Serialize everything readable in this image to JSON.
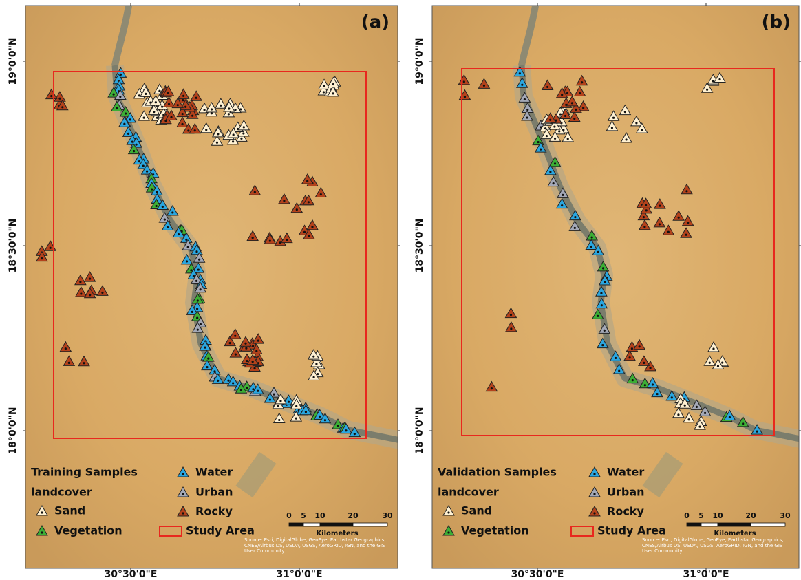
{
  "panels": [
    {
      "label": "(a)",
      "legend_title": "Training Samples"
    },
    {
      "label": "(b)",
      "legend_title": "Validation Samples"
    }
  ],
  "lat_labels": [
    "19°0'0\"N",
    "18°30'0\"N",
    "18°0'0\"N"
  ],
  "lon_labels": [
    "30°30'0\"E",
    "31°0'0\"E"
  ],
  "legend": {
    "subtitle": "landcover",
    "items": [
      "Sand",
      "Vegetation",
      "Water",
      "Urban",
      "Rocky",
      "Study Area"
    ]
  },
  "scale_bar": {
    "ticks": [
      "0",
      "5",
      "10",
      "20",
      "30"
    ],
    "unit": "Kilometers"
  },
  "source": "Source: Esri, DigitalGlobe, GeoEye, Earthstar Geographics, CNES/Airbus DS, USDA, USGS, AeroGRID, IGN, and the GIS User Community"
}
